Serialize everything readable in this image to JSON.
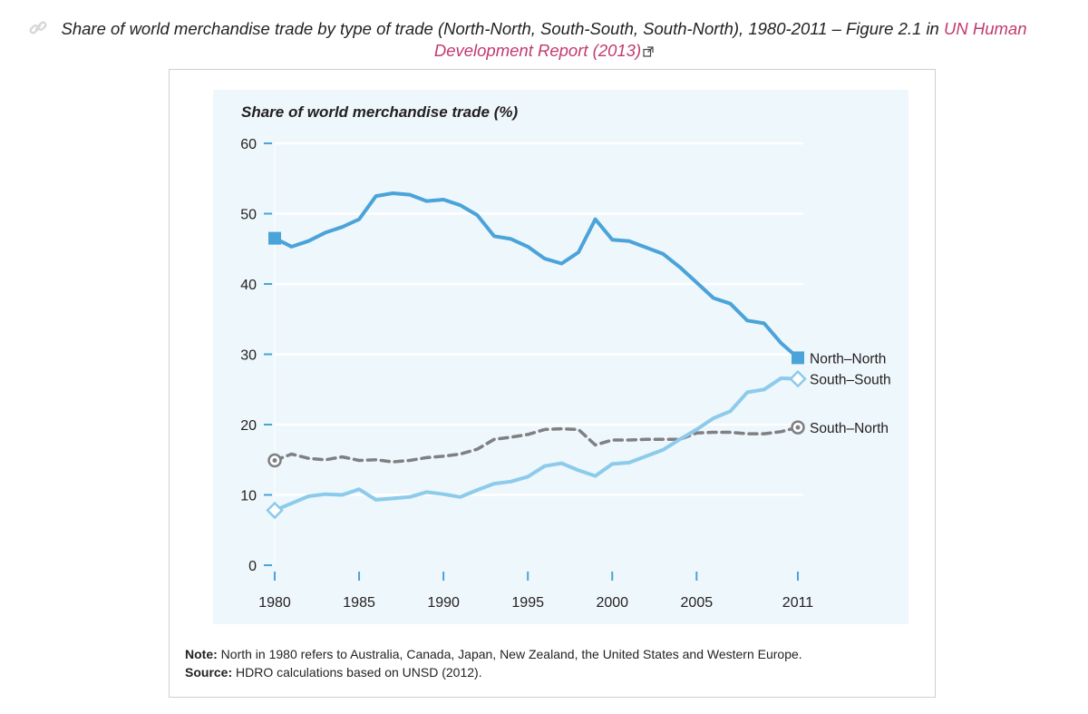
{
  "caption": {
    "text_before": "Share of world merchandise trade by type of trade (North-North, South-South, South-North), 1980-2011 – Figure 2.1 in ",
    "link_part1": "UN Human",
    "link_part2": "Development Report (2013)",
    "link_icon": "chain-link-icon",
    "external_icon": "external-link-icon",
    "link_color": "#c23a6e"
  },
  "chart_data": {
    "type": "line",
    "title": "Share of world merchandise trade (%)",
    "xlabel": "",
    "ylabel": "",
    "xlim": [
      1980,
      2011
    ],
    "ylim": [
      0,
      60
    ],
    "x_ticks": [
      1980,
      1985,
      1990,
      1995,
      2000,
      2005,
      2011
    ],
    "y_ticks": [
      0,
      10,
      20,
      30,
      40,
      50,
      60
    ],
    "grid": true,
    "background": "#eef7fb",
    "x": [
      1980,
      1981,
      1982,
      1983,
      1984,
      1985,
      1986,
      1987,
      1988,
      1989,
      1990,
      1991,
      1992,
      1993,
      1994,
      1995,
      1996,
      1997,
      1998,
      1999,
      2000,
      2001,
      2002,
      2003,
      2004,
      2005,
      2006,
      2007,
      2008,
      2009,
      2010,
      2011
    ],
    "series": [
      {
        "name": "North–North",
        "color": "#4aa3d9",
        "style": "solid",
        "marker": "square",
        "values": [
          46.5,
          45.3,
          46.1,
          47.3,
          48.1,
          49.2,
          52.5,
          52.9,
          52.7,
          51.8,
          52.0,
          51.2,
          49.8,
          46.8,
          46.4,
          45.3,
          43.6,
          42.9,
          44.5,
          49.2,
          46.3,
          46.1,
          45.2,
          44.3,
          42.4,
          40.2,
          38.0,
          37.2,
          34.8,
          34.4,
          31.6,
          29.5
        ]
      },
      {
        "name": "South–South",
        "color": "#8ccbeb",
        "style": "solid",
        "marker": "diamond-open",
        "values": [
          7.8,
          8.8,
          9.8,
          10.1,
          10.0,
          10.8,
          9.3,
          9.5,
          9.7,
          10.4,
          10.1,
          9.7,
          10.7,
          11.6,
          11.9,
          12.6,
          14.1,
          14.5,
          13.5,
          12.7,
          14.4,
          14.6,
          15.5,
          16.4,
          17.9,
          19.3,
          20.9,
          21.9,
          24.6,
          25.0,
          26.6,
          26.5
        ]
      },
      {
        "name": "South–North",
        "color": "#7f8083",
        "style": "dashed",
        "marker": "circle-dot",
        "values": [
          14.9,
          15.8,
          15.2,
          15.0,
          15.4,
          14.9,
          15.0,
          14.7,
          14.9,
          15.3,
          15.5,
          15.8,
          16.5,
          17.9,
          18.2,
          18.6,
          19.3,
          19.4,
          19.3,
          17.1,
          17.8,
          17.8,
          17.9,
          17.9,
          17.9,
          18.8,
          18.9,
          18.9,
          18.7,
          18.7,
          19.0,
          19.6
        ]
      }
    ]
  },
  "note": {
    "label": "Note:",
    "text": " North in 1980 refers to Australia, Canada, Japan, New Zealand, the United States and Western Europe.",
    "source_label": "Source:",
    "source_text": " HDRO calculations based on UNSD (2012)."
  }
}
